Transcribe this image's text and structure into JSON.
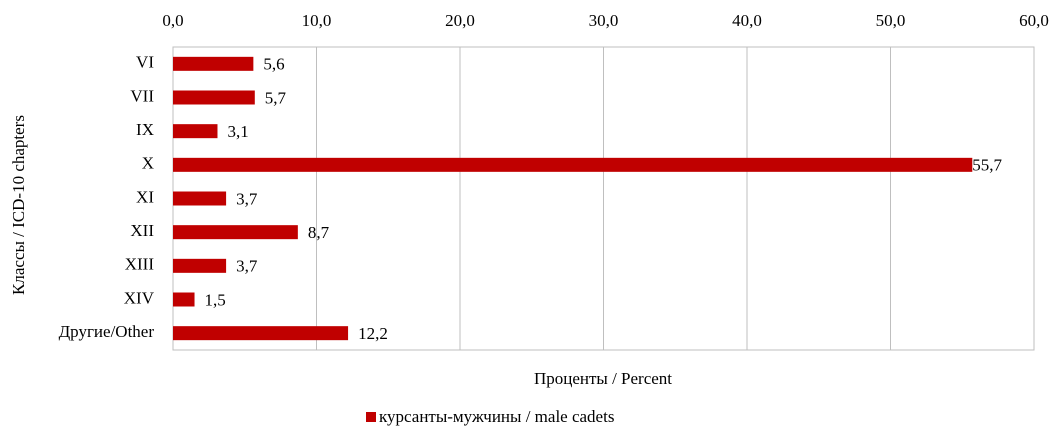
{
  "chart_data": {
    "type": "bar",
    "orientation": "horizontal",
    "categories": [
      "VI",
      "VII",
      "IX",
      "X",
      "XI",
      "XII",
      "XIII",
      "XIV",
      "Другие/Other"
    ],
    "series": [
      {
        "name": "курсанты-мужчины / male cadets",
        "color": "#c00000",
        "values": [
          5.6,
          5.7,
          3.1,
          55.7,
          3.7,
          8.7,
          3.7,
          1.5,
          12.2
        ],
        "value_labels": [
          "5,6",
          "5,7",
          "3,1",
          "55,7",
          "3,7",
          "8,7",
          "3,7",
          "1,5",
          "12,2"
        ]
      }
    ],
    "xlim": [
      0,
      60
    ],
    "xticks": [
      {
        "value": 0,
        "label": "0,0"
      },
      {
        "value": 10,
        "label": "10,0"
      },
      {
        "value": 20,
        "label": "20,0"
      },
      {
        "value": 30,
        "label": "30,0"
      },
      {
        "value": 40,
        "label": "40,0"
      },
      {
        "value": 50,
        "label": "50,0"
      },
      {
        "value": 60,
        "label": "60,0"
      }
    ],
    "xlabel": "Проценты / Percent",
    "ylabel": "Классы / ICD-10 chapters",
    "grid": true,
    "legend": "bottom"
  }
}
